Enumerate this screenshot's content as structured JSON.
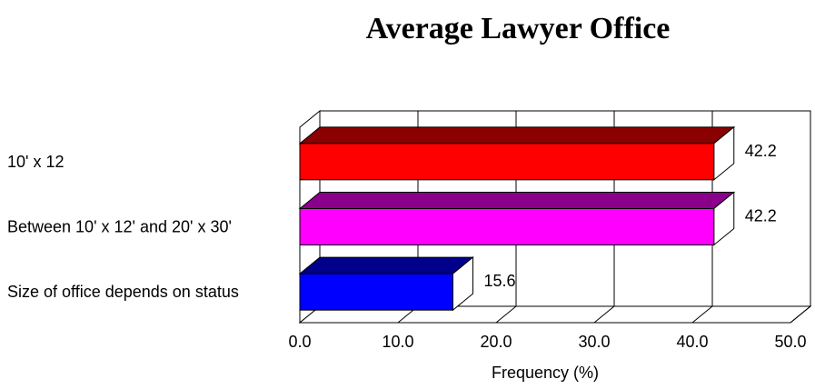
{
  "chart_data": {
    "type": "bar",
    "orientation": "horizontal",
    "style": "3d",
    "title": "Average Lawyer Office",
    "xlabel": "Frequency (%)",
    "ylabel": "",
    "xlim": [
      0,
      50
    ],
    "ticks": [
      "0.0",
      "10.0",
      "20.0",
      "30.0",
      "40.0",
      "50.0"
    ],
    "grid": true,
    "categories": [
      "10' x 12",
      "Between 10' x 12' and 20' x 30'",
      "Size of office depends on status"
    ],
    "values": [
      42.2,
      42.2,
      15.6
    ],
    "value_labels": [
      "42.2",
      "42.2",
      "15.6"
    ],
    "colors": [
      {
        "front": "#ff0000",
        "top": "#8b0000"
      },
      {
        "front": "#ff00ff",
        "top": "#8b008b"
      },
      {
        "front": "#0000ff",
        "top": "#00008b"
      }
    ]
  }
}
